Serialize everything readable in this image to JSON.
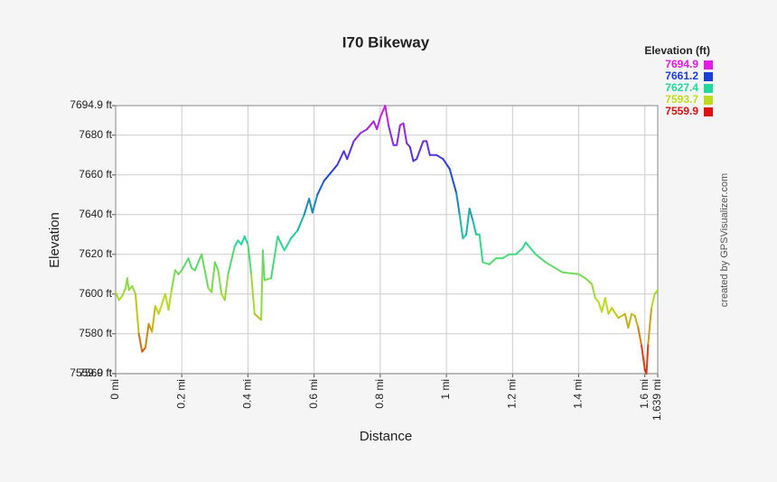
{
  "chart_data": {
    "type": "line",
    "title": "I70 Bikeway",
    "x_label": "Distance",
    "y_label": "Elevation",
    "credit": "created by GPSVisualizer.com",
    "legend_title": "Elevation (ft)",
    "color_scale": [
      {
        "value": 7694.9,
        "color": "#e619e6"
      },
      {
        "value": 7661.2,
        "color": "#1a3fd9"
      },
      {
        "value": 7627.4,
        "color": "#1fd99b"
      },
      {
        "value": 7593.7,
        "color": "#bfdc1a"
      },
      {
        "value": 7559.9,
        "color": "#e01010"
      }
    ],
    "x": [
      0,
      0.01,
      0.02,
      0.03,
      0.035,
      0.04,
      0.05,
      0.06,
      0.07,
      0.08,
      0.09,
      0.1,
      0.11,
      0.12,
      0.13,
      0.15,
      0.16,
      0.17,
      0.18,
      0.19,
      0.2,
      0.22,
      0.23,
      0.24,
      0.26,
      0.28,
      0.29,
      0.3,
      0.31,
      0.32,
      0.33,
      0.34,
      0.36,
      0.37,
      0.38,
      0.39,
      0.4,
      0.41,
      0.42,
      0.44,
      0.445,
      0.45,
      0.47,
      0.49,
      0.51,
      0.53,
      0.55,
      0.57,
      0.585,
      0.595,
      0.61,
      0.63,
      0.65,
      0.67,
      0.69,
      0.7,
      0.72,
      0.74,
      0.76,
      0.78,
      0.79,
      0.8,
      0.815,
      0.825,
      0.84,
      0.85,
      0.86,
      0.87,
      0.88,
      0.89,
      0.9,
      0.91,
      0.93,
      0.94,
      0.95,
      0.97,
      0.99,
      1.01,
      1.03,
      1.04,
      1.05,
      1.06,
      1.07,
      1.08,
      1.09,
      1.1,
      1.11,
      1.13,
      1.15,
      1.17,
      1.19,
      1.21,
      1.23,
      1.24,
      1.27,
      1.3,
      1.35,
      1.4,
      1.42,
      1.44,
      1.45,
      1.46,
      1.47,
      1.48,
      1.49,
      1.5,
      1.52,
      1.54,
      1.55,
      1.56,
      1.57,
      1.58,
      1.59,
      1.6,
      1.605,
      1.61,
      1.62,
      1.63,
      1.639
    ],
    "values": [
      7601,
      7597,
      7599,
      7603,
      7608,
      7602,
      7604,
      7600,
      7580,
      7571,
      7573,
      7585,
      7581,
      7594,
      7590,
      7600,
      7592,
      7603,
      7612,
      7610,
      7612,
      7618,
      7613,
      7612,
      7620,
      7603,
      7601,
      7616,
      7612,
      7600,
      7597,
      7610,
      7624,
      7627,
      7625,
      7629,
      7625,
      7610,
      7590,
      7587,
      7622,
      7607,
      7608,
      7629,
      7622,
      7628,
      7632,
      7640,
      7648,
      7641,
      7650,
      7657,
      7661,
      7665,
      7672,
      7668,
      7677,
      7681,
      7683,
      7687,
      7683,
      7689,
      7694.9,
      7685,
      7675,
      7675,
      7685,
      7686,
      7676,
      7674,
      7667,
      7668,
      7677,
      7677,
      7670,
      7670,
      7668,
      7663,
      7651,
      7640,
      7628,
      7630,
      7643,
      7637,
      7630,
      7630,
      7616,
      7615,
      7618,
      7618,
      7620,
      7620,
      7623,
      7626,
      7620,
      7616,
      7611,
      7610,
      7608,
      7605,
      7598,
      7596,
      7591,
      7598,
      7590,
      7593,
      7588,
      7590,
      7583,
      7590,
      7589,
      7583,
      7574,
      7562,
      7559.9,
      7575,
      7593,
      7600,
      7602
    ],
    "xlim": [
      0,
      1.639
    ],
    "xticks": [
      {
        "value": 0,
        "label": "0 mi"
      },
      {
        "value": 0.2,
        "label": "0.2 mi"
      },
      {
        "value": 0.4,
        "label": "0.4 mi"
      },
      {
        "value": 0.6,
        "label": "0.6 mi"
      },
      {
        "value": 0.8,
        "label": "0.8 mi"
      },
      {
        "value": 1,
        "label": "1 mi"
      },
      {
        "value": 1.2,
        "label": "1.2 mi"
      },
      {
        "value": 1.4,
        "label": "1.4 mi"
      },
      {
        "value": 1.6,
        "label": "1.6 mi"
      },
      {
        "value": 1.639,
        "label": "1.639 mi"
      }
    ],
    "ylim": [
      7559.9,
      7694.9
    ],
    "yticks": [
      {
        "value": 7559.9,
        "label": "7559.9 ft"
      },
      {
        "value": 7560,
        "label": "7560 ft"
      },
      {
        "value": 7580,
        "label": "7580 ft"
      },
      {
        "value": 7600,
        "label": "7600 ft"
      },
      {
        "value": 7620,
        "label": "7620 ft"
      },
      {
        "value": 7640,
        "label": "7640 ft"
      },
      {
        "value": 7660,
        "label": "7660 ft"
      },
      {
        "value": 7680,
        "label": "7680 ft"
      },
      {
        "value": 7694.9,
        "label": "7694.9 ft"
      }
    ],
    "grid": true
  }
}
